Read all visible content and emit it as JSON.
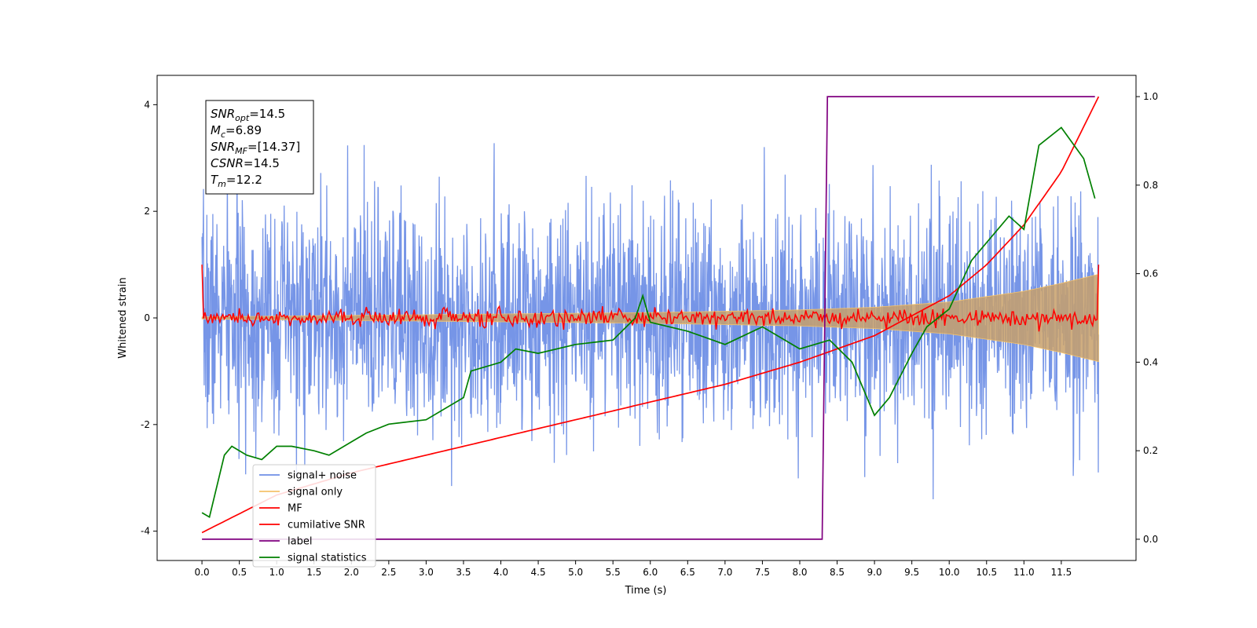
{
  "chart_data": {
    "type": "line",
    "title": "",
    "xlabel": "Time (s)",
    "ylabel": "Whitened strain",
    "y2label": "",
    "xlim": [
      -0.6,
      12.5
    ],
    "ylim": [
      -4.55,
      4.55
    ],
    "y2lim": [
      -0.048,
      1.048
    ],
    "x_ticks": [
      "0.0",
      "0.5",
      "1.0",
      "1.5",
      "2.0",
      "2.5",
      "3.0",
      "3.5",
      "4.0",
      "4.5",
      "5.0",
      "5.5",
      "6.0",
      "6.5",
      "7.0",
      "7.5",
      "8.0",
      "8.5",
      "9.0",
      "9.5",
      "10.0",
      "10.5",
      "11.0",
      "11.5"
    ],
    "y_ticks": [
      "-4",
      "-2",
      "0",
      "2",
      "4"
    ],
    "y2_ticks": [
      "0.0",
      "0.2",
      "0.4",
      "0.6",
      "0.8",
      "1.0"
    ],
    "grid": false,
    "legend_position": "lower-left",
    "info_box": {
      "lines": [
        {
          "var": "SNR",
          "sub": "opt",
          "value": "=14.5"
        },
        {
          "var": "M",
          "sub": "c",
          "value": "=6.89"
        },
        {
          "var": "SNR",
          "sub": "MF",
          "value": "=[14.37]"
        },
        {
          "var": "CSNR",
          "sub": "",
          "value": "=14.5"
        },
        {
          "var": "T",
          "sub": "m",
          "value": "=12.2"
        }
      ]
    },
    "series": [
      {
        "name": "signal+ noise",
        "color": "#6f8fe6",
        "axis": "left",
        "description_values": {
          "amplitude_range": [
            -4.1,
            4.15
          ],
          "duration": 12.0
        }
      },
      {
        "name": "signal only",
        "color": "#f5c36b",
        "axis": "left",
        "envelope": {
          "x": [
            0,
            3,
            6,
            8,
            9,
            10,
            11,
            11.5,
            12
          ],
          "amp": [
            0.02,
            0.06,
            0.1,
            0.15,
            0.2,
            0.3,
            0.5,
            0.65,
            0.82
          ]
        }
      },
      {
        "name": "MF",
        "color": "#ff0000",
        "axis": "left",
        "description_values": {
          "start": 1.0,
          "end": 1.0,
          "noise_level": 0.08
        }
      },
      {
        "name": "cumilative SNR",
        "color": "#ff0000",
        "axis": "right",
        "x": [
          0,
          1,
          2,
          3,
          4,
          5,
          6,
          7,
          8,
          9,
          10,
          10.5,
          11,
          11.5,
          12
        ],
        "y": [
          0.015,
          0.1,
          0.15,
          0.19,
          0.23,
          0.27,
          0.31,
          0.35,
          0.4,
          0.46,
          0.55,
          0.62,
          0.71,
          0.83,
          1.0
        ]
      },
      {
        "name": "label",
        "color": "#800080",
        "axis": "right",
        "x": [
          0,
          8.3,
          8.37,
          11.95
        ],
        "y": [
          0.0,
          0.0,
          1.0,
          1.0
        ]
      },
      {
        "name": "signal statistics",
        "color": "#008000",
        "axis": "right",
        "x": [
          0,
          0.1,
          0.3,
          0.4,
          0.6,
          0.8,
          1.0,
          1.2,
          1.5,
          1.7,
          2.0,
          2.2,
          2.5,
          3.0,
          3.5,
          3.6,
          4.0,
          4.2,
          4.5,
          5.0,
          5.5,
          5.8,
          5.9,
          6.0,
          6.5,
          7.0,
          7.5,
          8.0,
          8.4,
          8.7,
          9.0,
          9.2,
          9.5,
          9.7,
          10.0,
          10.3,
          10.5,
          10.8,
          11.0,
          11.2,
          11.5,
          11.8,
          11.95
        ],
        "y": [
          0.06,
          0.05,
          0.19,
          0.21,
          0.19,
          0.18,
          0.21,
          0.21,
          0.2,
          0.19,
          0.22,
          0.24,
          0.26,
          0.27,
          0.32,
          0.38,
          0.4,
          0.43,
          0.42,
          0.44,
          0.45,
          0.5,
          0.55,
          0.49,
          0.47,
          0.44,
          0.48,
          0.43,
          0.45,
          0.4,
          0.28,
          0.32,
          0.42,
          0.48,
          0.52,
          0.63,
          0.67,
          0.73,
          0.7,
          0.89,
          0.93,
          0.86,
          0.77
        ]
      }
    ]
  }
}
